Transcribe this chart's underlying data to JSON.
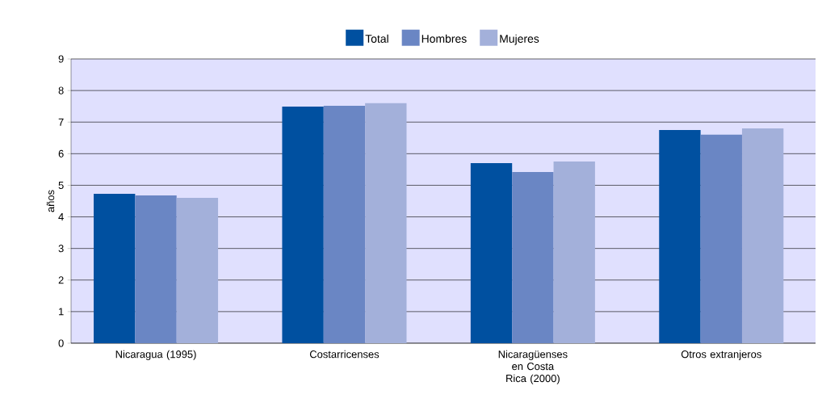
{
  "chart_data": {
    "type": "bar",
    "ylabel": "años",
    "categories": [
      "Nicaragua (1995)",
      "Costarricenses",
      "Nicaragüenses en Costa Rica (2000)",
      "Otros extranjeros"
    ],
    "series": [
      {
        "name": "Total",
        "color": "#0050a0",
        "values": [
          4.73,
          7.49,
          5.7,
          6.75
        ]
      },
      {
        "name": "Hombres",
        "color": "#6a86c4",
        "values": [
          4.68,
          7.52,
          5.42,
          6.6
        ]
      },
      {
        "name": "Mujeres",
        "color": "#a3b0da",
        "values": [
          4.6,
          7.6,
          5.75,
          6.8
        ]
      }
    ],
    "ylim": [
      0,
      9
    ],
    "yticks": [
      0,
      1,
      2,
      3,
      4,
      5,
      6,
      7,
      8,
      9
    ],
    "grid": "y",
    "legend": "top"
  }
}
